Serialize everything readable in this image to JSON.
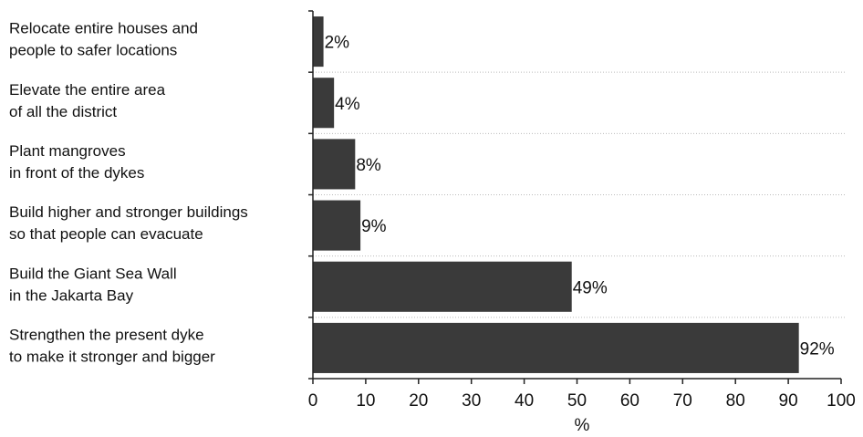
{
  "chart_data": {
    "type": "barh",
    "categories": [
      [
        "Relocate entire houses and",
        "people to safer locations"
      ],
      [
        "Elevate the entire area",
        "of all the district"
      ],
      [
        "Plant mangroves",
        "in front of the dykes"
      ],
      [
        "Build higher and stronger buildings",
        "so that people can evacuate"
      ],
      [
        "Build the Giant Sea Wall",
        "in the Jakarta Bay"
      ],
      [
        "Strengthen the present dyke",
        "to make it stronger and bigger"
      ]
    ],
    "values": [
      2,
      4,
      8,
      9,
      49,
      92
    ],
    "value_labels": [
      "2%",
      "4%",
      "8%",
      "9%",
      "49%",
      "92%"
    ],
    "color": "#3a3a3a",
    "xlabel": "%",
    "xlim": [
      0,
      100
    ],
    "xticks": [
      0,
      10,
      20,
      30,
      40,
      50,
      60,
      70,
      80,
      90,
      100
    ],
    "grid": true
  }
}
